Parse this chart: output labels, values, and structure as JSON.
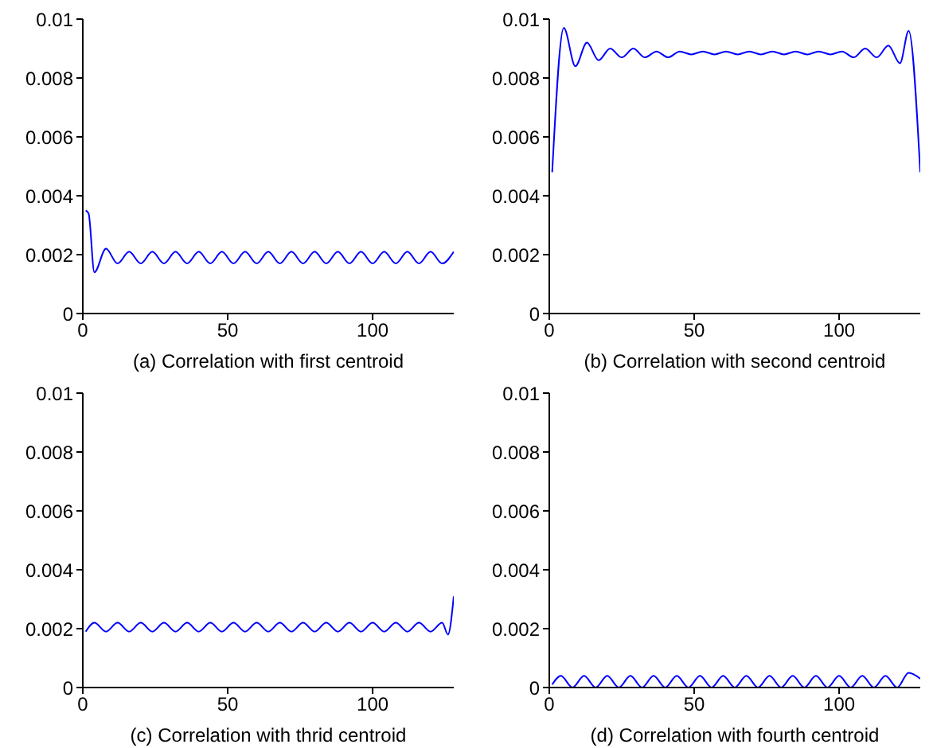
{
  "chart_data": [
    {
      "type": "line",
      "xlabel": "(a) Correlation with first centroid",
      "xlim": [
        0,
        128
      ],
      "xticks": [
        0,
        50,
        100
      ],
      "ylim": [
        0,
        0.01
      ],
      "yticks": [
        0,
        0.002,
        0.004,
        0.006,
        0.008,
        0.01
      ],
      "grid": false,
      "legend": false,
      "marker": "none",
      "line_style": "solid",
      "series": [
        {
          "color": "#0000ff",
          "x": [
            1,
            2,
            4,
            8,
            12,
            16,
            20,
            24,
            28,
            32,
            36,
            40,
            44,
            48,
            52,
            56,
            60,
            64,
            68,
            72,
            76,
            80,
            84,
            88,
            92,
            96,
            100,
            104,
            108,
            112,
            116,
            120,
            124,
            128
          ],
          "values": [
            0.0035,
            0.0034,
            0.0014,
            0.0022,
            0.0017,
            0.0021,
            0.0017,
            0.0021,
            0.0017,
            0.0021,
            0.0017,
            0.0021,
            0.0017,
            0.0021,
            0.0017,
            0.0021,
            0.0017,
            0.0021,
            0.0017,
            0.0021,
            0.0017,
            0.0021,
            0.0017,
            0.0021,
            0.0017,
            0.0021,
            0.0017,
            0.0021,
            0.0017,
            0.0021,
            0.0017,
            0.0021,
            0.0017,
            0.0021
          ]
        }
      ]
    },
    {
      "type": "line",
      "xlabel": "(b) Correlation with second centroid",
      "xlim": [
        0,
        128
      ],
      "xticks": [
        0,
        50,
        100
      ],
      "ylim": [
        0,
        0.01
      ],
      "yticks": [
        0,
        0.002,
        0.004,
        0.006,
        0.008,
        0.01
      ],
      "grid": false,
      "legend": false,
      "marker": "none",
      "line_style": "solid",
      "series": [
        {
          "color": "#0000ff",
          "x": [
            1,
            5,
            9,
            13,
            17,
            21,
            25,
            29,
            33,
            37,
            41,
            45,
            49,
            53,
            57,
            61,
            65,
            69,
            73,
            77,
            81,
            85,
            89,
            93,
            97,
            101,
            105,
            109,
            113,
            117,
            121,
            124,
            128
          ],
          "values": [
            0.0048,
            0.0097,
            0.0084,
            0.0092,
            0.0086,
            0.009,
            0.0087,
            0.009,
            0.0087,
            0.0089,
            0.0087,
            0.0089,
            0.0088,
            0.0089,
            0.0088,
            0.0089,
            0.0088,
            0.0089,
            0.0088,
            0.0089,
            0.0088,
            0.0089,
            0.0088,
            0.0089,
            0.0088,
            0.0089,
            0.0087,
            0.009,
            0.0087,
            0.0091,
            0.0085,
            0.0096,
            0.0048
          ]
        }
      ]
    },
    {
      "type": "line",
      "xlabel": "(c) Correlation with thrid centroid",
      "xlim": [
        0,
        128
      ],
      "xticks": [
        0,
        50,
        100
      ],
      "ylim": [
        0,
        0.01
      ],
      "yticks": [
        0,
        0.002,
        0.004,
        0.006,
        0.008,
        0.01
      ],
      "grid": false,
      "legend": false,
      "marker": "none",
      "line_style": "solid",
      "series": [
        {
          "color": "#0000ff",
          "x": [
            1,
            4,
            8,
            12,
            16,
            20,
            24,
            28,
            32,
            36,
            40,
            44,
            48,
            52,
            56,
            60,
            64,
            68,
            72,
            76,
            80,
            84,
            88,
            92,
            96,
            100,
            104,
            108,
            112,
            116,
            120,
            124,
            126,
            128
          ],
          "values": [
            0.0019,
            0.0022,
            0.0019,
            0.0022,
            0.0019,
            0.0022,
            0.0019,
            0.0022,
            0.0019,
            0.0022,
            0.0019,
            0.0022,
            0.0019,
            0.0022,
            0.0019,
            0.0022,
            0.0019,
            0.0022,
            0.0019,
            0.0022,
            0.0019,
            0.0022,
            0.0019,
            0.0022,
            0.0019,
            0.0022,
            0.0019,
            0.0022,
            0.0019,
            0.0022,
            0.0019,
            0.0022,
            0.0018,
            0.0031
          ]
        }
      ]
    },
    {
      "type": "line",
      "xlabel": "(d) Correlation with fourth centroid",
      "xlim": [
        0,
        128
      ],
      "xticks": [
        0,
        50,
        100
      ],
      "ylim": [
        0,
        0.01
      ],
      "yticks": [
        0,
        0.002,
        0.004,
        0.006,
        0.008,
        0.01
      ],
      "grid": false,
      "legend": false,
      "marker": "none",
      "line_style": "solid",
      "series": [
        {
          "color": "#0000ff",
          "x": [
            1,
            4,
            8,
            12,
            16,
            20,
            24,
            28,
            32,
            36,
            40,
            44,
            48,
            52,
            56,
            60,
            64,
            68,
            72,
            76,
            80,
            84,
            88,
            92,
            96,
            100,
            104,
            108,
            112,
            116,
            120,
            124,
            128
          ],
          "values": [
            0.0001,
            0.0004,
            0,
            0.0004,
            0,
            0.0004,
            0,
            0.0004,
            0,
            0.0004,
            0,
            0.0004,
            0,
            0.0004,
            0,
            0.0004,
            0,
            0.0004,
            0,
            0.0004,
            0,
            0.0004,
            0,
            0.0004,
            0,
            0.0004,
            0,
            0.0004,
            0,
            0.0004,
            0,
            0.0005,
            0.0003
          ]
        }
      ]
    }
  ]
}
